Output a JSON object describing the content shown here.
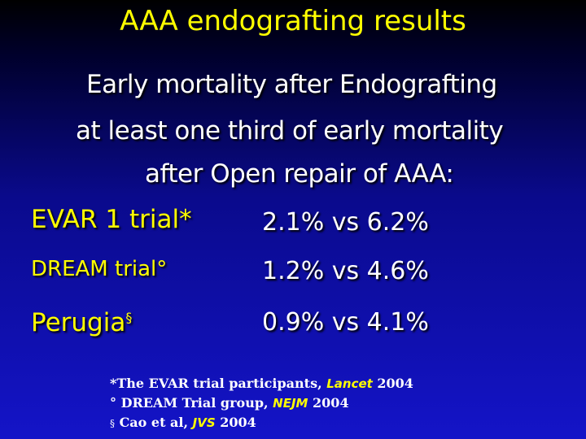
{
  "title": "AAA endografting results",
  "intro": {
    "line1": "Early  mortality after Endografting",
    "line2": "at least one third  of early mortality",
    "line3": "after Open repair of AAA:"
  },
  "results": [
    {
      "label": "EVAR 1 trial*",
      "value": "2.1% vs 6.2%"
    },
    {
      "label": "DREAM trial°",
      "value": "1.2% vs 4.6%"
    },
    {
      "label": "Perugia",
      "label_mark": "§",
      "value": "0.9% vs 4.1%"
    }
  ],
  "references": [
    {
      "text": "*The EVAR trial participants, ",
      "journal": "Lancet",
      "year": " 2004"
    },
    {
      "text": "° DREAM Trial group, ",
      "journal": "NEJM",
      "year": " 2004"
    },
    {
      "mark": "§",
      "text": " Cao et al, ",
      "journal": "JVS",
      "year": " 2004"
    }
  ],
  "colors": {
    "title": "#ffff00",
    "labels": "#ffff00",
    "values": "#ffffff",
    "background_top": "#000000",
    "background_bottom": "#1414c8"
  }
}
